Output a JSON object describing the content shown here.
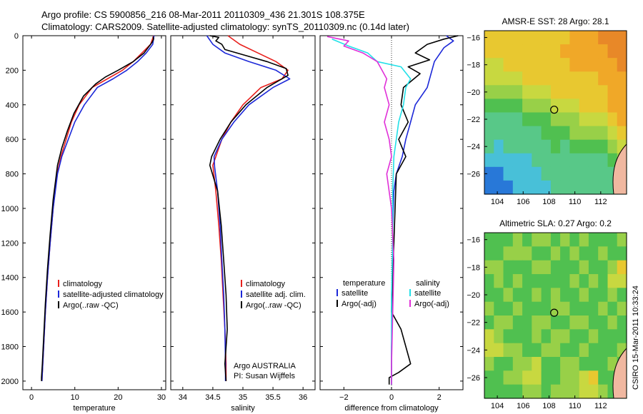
{
  "header": {
    "line1": "Argo profile: CS 5900856_216 08-Mar-2011 20110309_436 21.301S 108.375E",
    "line2": "Climatology: CARS2009. Satellite-adjusted climatology: synTS_20110309.nc (0.14d later)"
  },
  "credit": "CSIRO 15-Mar-2011 10:33:24",
  "colors": {
    "climatology": "#e8201c",
    "satellite": "#1c28d8",
    "argo": "#000000",
    "sal_satellite": "#22e0e8",
    "sal_argo": "#e030d8"
  },
  "chart_data": [
    {
      "type": "line",
      "xlabel": "temperature",
      "ylabel": "",
      "xlim": [
        -2,
        31
      ],
      "ylim": [
        2050,
        0
      ],
      "xticks": [
        0,
        10,
        20,
        30
      ],
      "yticks": [
        0,
        200,
        400,
        600,
        800,
        1000,
        1200,
        1400,
        1600,
        1800,
        2000
      ],
      "legend": {
        "placement": "bottom-right",
        "entries": [
          "climatology",
          "satellite-adjusted climatology",
          "Argo(..raw -QC)"
        ]
      },
      "series": [
        {
          "name": "climatology",
          "color": "#e8201c",
          "x": [
            28.2,
            27.5,
            25.5,
            23.5,
            21.0,
            17.5,
            14.0,
            11.0,
            9.2,
            8.0,
            6.8,
            5.9,
            5.0,
            4.3,
            3.7,
            3.2,
            2.8,
            2.5,
            2.4
          ],
          "y": [
            0,
            50,
            100,
            150,
            200,
            250,
            300,
            400,
            500,
            600,
            700,
            800,
            1000,
            1200,
            1400,
            1600,
            1800,
            1950,
            2000
          ]
        },
        {
          "name": "satellite-adjusted climatology",
          "color": "#1c28d8",
          "x": [
            28.3,
            28.0,
            26.5,
            24.5,
            22.0,
            18.8,
            15.2,
            12.2,
            10.0,
            8.5,
            7.0,
            6.0,
            5.0,
            4.3,
            3.7,
            3.2,
            2.8,
            2.5,
            2.4
          ],
          "y": [
            0,
            50,
            100,
            150,
            200,
            250,
            300,
            400,
            500,
            600,
            700,
            800,
            1000,
            1200,
            1400,
            1600,
            1800,
            1950,
            2000
          ]
        },
        {
          "name": "Argo(..raw -QC)",
          "color": "#000000",
          "x": [
            28.1,
            28.2,
            27.8,
            26.0,
            23.5,
            20.0,
            17.0,
            14.8,
            12.0,
            9.8,
            8.3,
            7.0,
            6.0,
            5.0,
            4.3,
            3.7,
            3.2,
            2.8,
            2.5,
            2.3,
            2.3
          ],
          "y": [
            5,
            20,
            40,
            100,
            150,
            200,
            240,
            280,
            350,
            450,
            550,
            650,
            750,
            950,
            1150,
            1350,
            1550,
            1750,
            1900,
            1980,
            2000
          ]
        }
      ]
    },
    {
      "type": "line",
      "xlabel": "salinity",
      "ylabel": "",
      "xlim": [
        33.8,
        36.2
      ],
      "ylim": [
        2050,
        0
      ],
      "xticks": [
        34,
        34.5,
        35,
        35.5,
        36
      ],
      "yticks": [
        0,
        200,
        400,
        600,
        800,
        1000,
        1200,
        1400,
        1600,
        1800,
        2000
      ],
      "legend": {
        "placement": "bottom-right",
        "entries": [
          "climatology",
          "satellite adj. clim.",
          "Argo(..raw -QC)"
        ]
      },
      "annotations": [
        "Argo AUSTRALIA",
        "PI: Susan Wijffels"
      ],
      "series": [
        {
          "name": "climatology",
          "color": "#e8201c",
          "x": [
            34.75,
            34.95,
            35.25,
            35.55,
            35.75,
            35.65,
            35.3,
            35.0,
            34.8,
            34.65,
            34.55,
            34.5,
            34.55,
            34.6,
            34.64,
            34.67,
            34.7,
            34.72,
            34.72
          ],
          "y": [
            0,
            50,
            100,
            150,
            200,
            250,
            300,
            400,
            500,
            600,
            700,
            750,
            900,
            1100,
            1300,
            1500,
            1700,
            1900,
            2000
          ]
        },
        {
          "name": "satellite adj. clim.",
          "color": "#1c28d8",
          "x": [
            34.4,
            34.5,
            34.7,
            35.1,
            35.55,
            35.78,
            35.5,
            35.1,
            34.85,
            34.65,
            34.52,
            34.53,
            34.58,
            34.62,
            34.65,
            34.68,
            34.7,
            34.71,
            34.71
          ],
          "y": [
            0,
            50,
            100,
            150,
            200,
            250,
            300,
            400,
            500,
            600,
            700,
            760,
            900,
            1100,
            1300,
            1500,
            1700,
            1900,
            2000
          ]
        },
        {
          "name": "Argo(..raw -QC)",
          "color": "#000000",
          "x": [
            34.45,
            34.6,
            34.55,
            34.65,
            34.7,
            35.0,
            35.4,
            35.72,
            35.75,
            35.4,
            35.05,
            34.8,
            34.62,
            34.48,
            34.45,
            34.58,
            34.64,
            34.68,
            34.72,
            34.74,
            34.7,
            34.72
          ],
          "y": [
            0,
            10,
            30,
            50,
            80,
            110,
            150,
            190,
            230,
            300,
            400,
            500,
            600,
            700,
            750,
            900,
            1100,
            1300,
            1500,
            1700,
            1900,
            2000
          ]
        }
      ]
    },
    {
      "type": "line",
      "xlabel": "difference from climatology",
      "ylabel": "",
      "xlim": [
        -3.0,
        3.0
      ],
      "ylim": [
        2050,
        0
      ],
      "xticks": [
        -2,
        0,
        2
      ],
      "yticks": [
        0,
        200,
        400,
        600,
        800,
        1000,
        1200,
        1400,
        1600,
        1800,
        2000
      ],
      "legend": {
        "placement": "bottom",
        "headers": [
          "temperature",
          "salinity"
        ],
        "entries": [
          "satellite",
          "Argo(-adj)",
          "satellite",
          "Argo(-adj)"
        ]
      },
      "series": [
        {
          "name": "temperature satellite",
          "color": "#1c28d8",
          "x": [
            2.3,
            2.6,
            2.2,
            1.8,
            1.6,
            1.5,
            1.0,
            0.8,
            0.6,
            0.45,
            0.2,
            0.1,
            0.05,
            0.05,
            0.02,
            0.02,
            0.0,
            0.0,
            0.0,
            0.0
          ],
          "y": [
            0,
            30,
            70,
            150,
            250,
            300,
            400,
            500,
            600,
            700,
            800,
            900,
            1100,
            1300,
            1500,
            1700,
            1800,
            1900,
            2000,
            2020
          ]
        },
        {
          "name": "temperature Argo(-adj)",
          "color": "#000000",
          "x": [
            2.8,
            2.2,
            1.5,
            1.0,
            1.6,
            0.7,
            1.2,
            0.5,
            0.4,
            0.7,
            0.3,
            0.6,
            0.2,
            0.15,
            0.1,
            0.05,
            0.02,
            0.0,
            0.4,
            0.6,
            0.8,
            0.3,
            -0.1,
            -0.1
          ],
          "y": [
            0,
            20,
            50,
            100,
            140,
            180,
            220,
            300,
            400,
            500,
            600,
            700,
            800,
            1000,
            1200,
            1400,
            1500,
            1600,
            1700,
            1800,
            1900,
            1950,
            1980,
            2020
          ]
        },
        {
          "name": "salinity satellite",
          "color": "#22e0e8",
          "x": [
            -2.5,
            -1.8,
            -1.0,
            -0.6,
            0.4,
            0.8,
            0.6,
            0.5,
            0.3,
            0.2,
            0.1,
            0.05,
            0.05,
            0.0,
            0.0,
            0.0
          ],
          "y": [
            20,
            60,
            100,
            150,
            180,
            250,
            300,
            400,
            500,
            600,
            700,
            900,
            1200,
            1500,
            1800,
            2020
          ]
        },
        {
          "name": "salinity Argo(-adj)",
          "color": "#e030d8",
          "x": [
            -2.7,
            -1.8,
            -2.0,
            -1.2,
            -0.6,
            -0.4,
            -0.2,
            -0.3,
            -0.1,
            -0.3,
            -0.1,
            0.0,
            -0.2,
            0.0,
            0.1,
            0.05,
            0.0,
            0.0
          ],
          "y": [
            5,
            30,
            60,
            100,
            150,
            200,
            250,
            300,
            400,
            500,
            600,
            700,
            800,
            1000,
            1300,
            1600,
            1900,
            2020
          ]
        }
      ]
    },
    {
      "type": "heatmap",
      "title": "AMSR-E SST: 28 Argo: 28.1",
      "xlim": [
        103,
        114
      ],
      "ylim": [
        -27.5,
        -15.5
      ],
      "xticks": [
        104,
        106,
        108,
        110,
        112
      ],
      "yticks": [
        -16,
        -18,
        -20,
        -22,
        -24,
        -26
      ],
      "marker": {
        "x": 108.4,
        "y": -21.3
      },
      "grid_top_to_bottom": [
        "666666666777888",
        "666666667777788",
        "556666666777778",
        "555566666666777",
        "444455566666677",
        "333344455566677",
        "222233344455567",
        "222222333444456",
        "212222232333345",
        "111112222222234",
        "001111222222223",
        "000111122222222"
      ]
    },
    {
      "type": "heatmap",
      "title": "Altimetric SLA: 0.27 Argo: 0.2",
      "xlim": [
        103,
        114
      ],
      "ylim": [
        -27.5,
        -15.5
      ],
      "xticks": [
        104,
        106,
        108,
        110,
        112
      ],
      "yticks": [
        -16,
        -18,
        -20,
        -22,
        -24,
        -26
      ],
      "marker": {
        "x": 108.4,
        "y": -21.3
      },
      "grid_top_to_bottom": [
        "333434434343334",
        "334443343433433",
        "443334433343346",
        "343433333434355",
        "334334343343343",
        "433433344333434",
        "344334433443343",
        "543334344334333",
        "554433443343334",
        "433445334433343",
        "334455334456333",
        "333344344455433"
      ]
    }
  ]
}
